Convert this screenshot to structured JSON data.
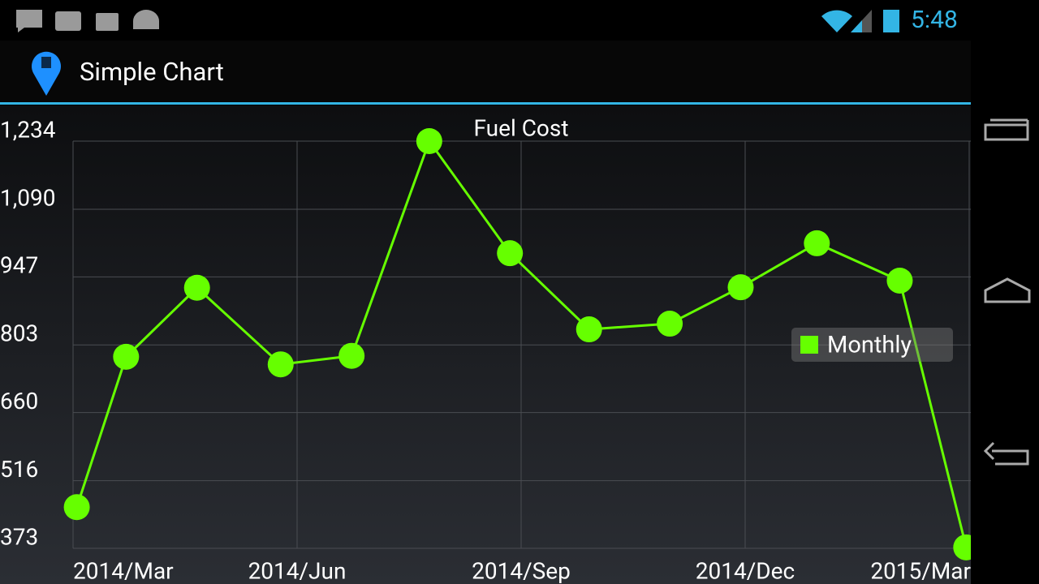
{
  "status_bar": {
    "time": "5:48"
  },
  "action_bar": {
    "title": "Simple Chart"
  },
  "chart_data": {
    "type": "line",
    "title": "Fuel Cost",
    "x": [
      0.05,
      0.71,
      1.66,
      2.78,
      3.73,
      4.77,
      5.85,
      6.91,
      7.99,
      8.94,
      9.96,
      11.07,
      11.96
    ],
    "xlim": [
      0,
      12
    ],
    "xticks": [
      {
        "value": 0,
        "label": "2014/Mar"
      },
      {
        "value": 3,
        "label": "2014/Jun"
      },
      {
        "value": 6,
        "label": "2014/Sep"
      },
      {
        "value": 9,
        "label": "2014/Dec"
      },
      {
        "value": 12,
        "label": "2015/Mar"
      }
    ],
    "ylim": [
      373,
      1234
    ],
    "yticks": [
      373,
      516,
      660,
      803,
      947,
      {
        "value": 1090,
        "label": "1,090"
      },
      {
        "value": 1234,
        "label": "1,234"
      }
    ],
    "series": [
      {
        "name": "Monthly",
        "color": "#66ff00",
        "values": [
          460,
          778,
          924,
          762,
          780,
          1234,
          997,
          836,
          848,
          925,
          1018,
          939,
          375
        ]
      }
    ],
    "grid": true,
    "legend": "right"
  }
}
